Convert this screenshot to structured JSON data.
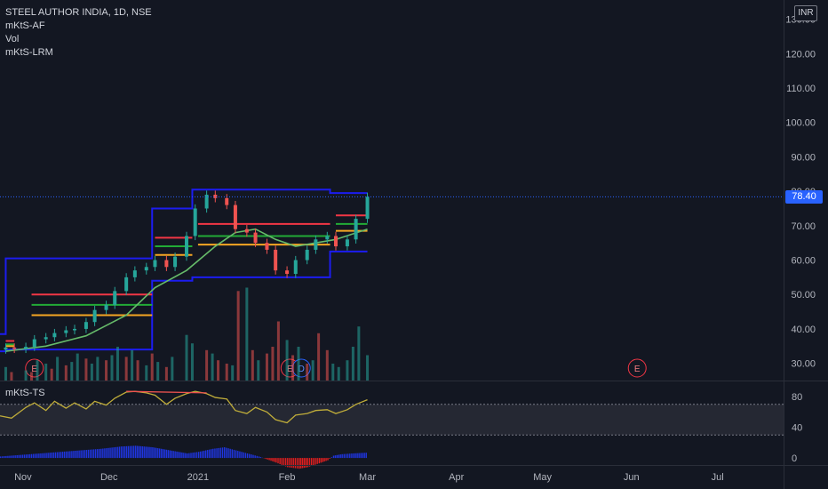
{
  "header": {
    "symbol_line": "STEEL AUTHOR INDIA, 1D, NSE",
    "indicators": [
      "mKtS-AF",
      "Vol",
      "mKtS-LRM"
    ],
    "currency": "INR"
  },
  "oscillator": {
    "label": "mKtS-TS"
  },
  "last_price": "78.40",
  "colors": {
    "background": "#131722",
    "up": "#26a69a",
    "down": "#ef5350",
    "channel": "#1c1cf0",
    "ma": "#66bb6a",
    "last_price": "#2962ff"
  },
  "events": [
    {
      "label": "E",
      "date": "2020-11-05"
    },
    {
      "label": "E",
      "date": "2021-02-02"
    },
    {
      "label": "D",
      "date": "2021-02-06"
    },
    {
      "label": "E",
      "date": "2021-06-03"
    }
  ],
  "chart_data": [
    {
      "type": "candlestick",
      "title": "STEEL AUTHOR INDIA, 1D, NSE",
      "x_axis": {
        "type": "date",
        "range": [
          "2020-10-24",
          "2021-07-24"
        ],
        "tick_labels": [
          {
            "date": "2020-11-01",
            "label": "Nov"
          },
          {
            "date": "2020-12-01",
            "label": "Dec"
          },
          {
            "date": "2021-01-01",
            "label": "2021"
          },
          {
            "date": "2021-02-01",
            "label": "Feb"
          },
          {
            "date": "2021-03-01",
            "label": "Mar"
          },
          {
            "date": "2021-04-01",
            "label": "Apr"
          },
          {
            "date": "2021-05-01",
            "label": "May"
          },
          {
            "date": "2021-06-01",
            "label": "Jun"
          },
          {
            "date": "2021-07-01",
            "label": "Jul"
          }
        ]
      },
      "y_axis": {
        "range": [
          25,
          133
        ],
        "ticks": [
          "30.00",
          "40.00",
          "50.00",
          "60.00",
          "70.00",
          "80.00",
          "90.00",
          "100.00",
          "110.00",
          "120.00",
          "130.00"
        ]
      },
      "grid": false,
      "close_series": [
        [
          "2020-10-26",
          34.6
        ],
        [
          "2020-10-29",
          34.2
        ],
        [
          "2020-11-02",
          34.8
        ],
        [
          "2020-11-05",
          37.0
        ],
        [
          "2020-11-09",
          37.6
        ],
        [
          "2020-11-12",
          38.8
        ],
        [
          "2020-11-16",
          39.6
        ],
        [
          "2020-11-19",
          40.0
        ],
        [
          "2020-11-23",
          42.0
        ],
        [
          "2020-11-26",
          45.5
        ],
        [
          "2020-11-30",
          47.0
        ],
        [
          "2020-12-03",
          51.0
        ],
        [
          "2020-12-07",
          55.0
        ],
        [
          "2020-12-10",
          57.0
        ],
        [
          "2020-12-14",
          58.0
        ],
        [
          "2020-12-17",
          60.0
        ],
        [
          "2020-12-21",
          58.0
        ],
        [
          "2020-12-24",
          61.0
        ],
        [
          "2020-12-28",
          67.0
        ],
        [
          "2020-12-31",
          75.0
        ],
        [
          "2021-01-04",
          79.0
        ],
        [
          "2021-01-07",
          78.0
        ],
        [
          "2021-01-11",
          76.0
        ],
        [
          "2021-01-14",
          69.0
        ],
        [
          "2021-01-18",
          68.0
        ],
        [
          "2021-01-21",
          65.0
        ],
        [
          "2021-01-25",
          63.0
        ],
        [
          "2021-01-28",
          57.0
        ],
        [
          "2021-02-01",
          56.0
        ],
        [
          "2021-02-04",
          60.0
        ],
        [
          "2021-02-08",
          63.0
        ],
        [
          "2021-02-11",
          66.0
        ],
        [
          "2021-02-15",
          67.0
        ],
        [
          "2021-02-18",
          64.0
        ],
        [
          "2021-02-22",
          66.0
        ],
        [
          "2021-02-25",
          72.0
        ],
        [
          "2021-03-01",
          78.4
        ]
      ],
      "moving_average": [
        [
          "2020-10-26",
          33.5
        ],
        [
          "2020-11-09",
          35.0
        ],
        [
          "2020-11-23",
          38.0
        ],
        [
          "2020-12-07",
          44.0
        ],
        [
          "2020-12-17",
          52.0
        ],
        [
          "2020-12-28",
          57.0
        ],
        [
          "2021-01-07",
          64.0
        ],
        [
          "2021-01-14",
          68.0
        ],
        [
          "2021-01-21",
          69.0
        ],
        [
          "2021-01-28",
          66.0
        ],
        [
          "2021-02-04",
          64.0
        ],
        [
          "2021-02-11",
          65.0
        ],
        [
          "2021-02-18",
          66.0
        ],
        [
          "2021-03-01",
          69.0
        ]
      ],
      "channel": [
        {
          "from": "2020-10-24",
          "to": "2020-10-26",
          "top": 38.5,
          "bottom": 33.5
        },
        {
          "from": "2020-10-26",
          "to": "2020-12-16",
          "top": 60.5,
          "bottom": 34.0
        },
        {
          "from": "2020-12-16",
          "to": "2020-12-30",
          "top": 75.0,
          "bottom": 54.0
        },
        {
          "from": "2020-12-30",
          "to": "2021-02-16",
          "top": 80.5,
          "bottom": 55.0
        },
        {
          "from": "2021-02-16",
          "to": "2021-03-01",
          "top": 79.5,
          "bottom": 62.5
        }
      ],
      "levels": [
        {
          "from": "2020-10-26",
          "to": "2020-10-29",
          "red": 36.5,
          "green": 35.5,
          "orange": 35.0
        },
        {
          "from": "2020-11-04",
          "to": "2020-12-16",
          "red": 50.0,
          "green": 47.0,
          "orange": 44.0
        },
        {
          "from": "2020-12-17",
          "to": "2020-12-30",
          "red": 66.5,
          "green": 64.0,
          "orange": 61.5
        },
        {
          "from": "2021-01-01",
          "to": "2021-02-16",
          "red": 70.5,
          "green": 67.0,
          "orange": 64.5
        },
        {
          "from": "2021-02-18",
          "to": "2021-03-01",
          "red": 73.0,
          "green": 70.5,
          "orange": 68.5
        }
      ],
      "last_price": 78.4
    },
    {
      "type": "bar",
      "title": "Vol",
      "note": "relative volume, unitless",
      "values": [
        [
          "2020-10-26",
          8,
          "up"
        ],
        [
          "2020-10-28",
          5,
          "down"
        ],
        [
          "2020-11-02",
          6,
          "up"
        ],
        [
          "2020-11-04",
          5,
          "down"
        ],
        [
          "2020-11-06",
          12,
          "up"
        ],
        [
          "2020-11-09",
          10,
          "up"
        ],
        [
          "2020-11-11",
          7,
          "down"
        ],
        [
          "2020-11-13",
          14,
          "up"
        ],
        [
          "2020-11-16",
          9,
          "down"
        ],
        [
          "2020-11-18",
          11,
          "up"
        ],
        [
          "2020-11-20",
          16,
          "up"
        ],
        [
          "2020-11-23",
          13,
          "down"
        ],
        [
          "2020-11-25",
          10,
          "up"
        ],
        [
          "2020-11-27",
          14,
          "up"
        ],
        [
          "2020-11-30",
          12,
          "down"
        ],
        [
          "2020-12-02",
          15,
          "up"
        ],
        [
          "2020-12-04",
          20,
          "up"
        ],
        [
          "2020-12-07",
          14,
          "down"
        ],
        [
          "2020-12-09",
          18,
          "up"
        ],
        [
          "2020-12-11",
          12,
          "down"
        ],
        [
          "2020-12-14",
          9,
          "up"
        ],
        [
          "2020-12-16",
          16,
          "down"
        ],
        [
          "2020-12-18",
          11,
          "up"
        ],
        [
          "2020-12-21",
          8,
          "down"
        ],
        [
          "2020-12-23",
          14,
          "up"
        ],
        [
          "2020-12-28",
          27,
          "up"
        ],
        [
          "2020-12-30",
          22,
          "up"
        ],
        [
          "2021-01-04",
          18,
          "down"
        ],
        [
          "2021-01-06",
          16,
          "up"
        ],
        [
          "2021-01-08",
          12,
          "down"
        ],
        [
          "2021-01-11",
          10,
          "down"
        ],
        [
          "2021-01-13",
          9,
          "up"
        ],
        [
          "2021-01-15",
          53,
          "down"
        ],
        [
          "2021-01-18",
          55,
          "up"
        ],
        [
          "2021-01-20",
          18,
          "down"
        ],
        [
          "2021-01-22",
          12,
          "up"
        ],
        [
          "2021-01-25",
          16,
          "down"
        ],
        [
          "2021-01-27",
          20,
          "down"
        ],
        [
          "2021-01-29",
          35,
          "down"
        ],
        [
          "2021-02-01",
          24,
          "up"
        ],
        [
          "2021-02-03",
          15,
          "down"
        ],
        [
          "2021-02-05",
          20,
          "up"
        ],
        [
          "2021-02-08",
          10,
          "down"
        ],
        [
          "2021-02-10",
          12,
          "up"
        ],
        [
          "2021-02-12",
          28,
          "down"
        ],
        [
          "2021-02-15",
          18,
          "down"
        ],
        [
          "2021-02-17",
          10,
          "up"
        ],
        [
          "2021-02-19",
          8,
          "up"
        ],
        [
          "2021-02-22",
          12,
          "up"
        ],
        [
          "2021-02-24",
          20,
          "up"
        ],
        [
          "2021-02-26",
          32,
          "up"
        ],
        [
          "2021-03-01",
          15,
          "up"
        ]
      ]
    },
    {
      "type": "line",
      "title": "mKtS-TS",
      "y_axis": {
        "range": [
          -8,
          93
        ],
        "ticks": [
          "0",
          "40",
          "80"
        ],
        "band": [
          30,
          70
        ]
      },
      "series": [
        {
          "name": "mKtS-TS",
          "color": "#c0ad3a",
          "points": [
            [
              "2020-10-24",
              55
            ],
            [
              "2020-10-28",
              52
            ],
            [
              "2020-11-02",
              66
            ],
            [
              "2020-11-05",
              72
            ],
            [
              "2020-11-09",
              62
            ],
            [
              "2020-11-12",
              74
            ],
            [
              "2020-11-16",
              65
            ],
            [
              "2020-11-19",
              72
            ],
            [
              "2020-11-23",
              64
            ],
            [
              "2020-11-26",
              74
            ],
            [
              "2020-11-30",
              69
            ],
            [
              "2020-12-03",
              78
            ],
            [
              "2020-12-07",
              86
            ],
            [
              "2020-12-10",
              87
            ],
            [
              "2020-12-14",
              85
            ],
            [
              "2020-12-17",
              82
            ],
            [
              "2020-12-21",
              70
            ],
            [
              "2020-12-24",
              78
            ],
            [
              "2020-12-28",
              84
            ],
            [
              "2020-12-31",
              87
            ],
            [
              "2021-01-04",
              84
            ],
            [
              "2021-01-07",
              79
            ],
            [
              "2021-01-11",
              77
            ],
            [
              "2021-01-14",
              62
            ],
            [
              "2021-01-18",
              58
            ],
            [
              "2021-01-21",
              66
            ],
            [
              "2021-01-25",
              60
            ],
            [
              "2021-01-28",
              50
            ],
            [
              "2021-02-01",
              46
            ],
            [
              "2021-02-04",
              56
            ],
            [
              "2021-02-08",
              58
            ],
            [
              "2021-02-11",
              62
            ],
            [
              "2021-02-15",
              63
            ],
            [
              "2021-02-18",
              58
            ],
            [
              "2021-02-22",
              63
            ],
            [
              "2021-02-25",
              70
            ],
            [
              "2021-03-01",
              76
            ]
          ]
        }
      ],
      "divergence_line": {
        "from": [
          "2020-12-07",
          87
        ],
        "to": [
          "2021-01-04",
          85
        ],
        "color": "#ef5350"
      },
      "histogram": [
        [
          "2020-10-24",
          2
        ],
        [
          "2020-10-31",
          4
        ],
        [
          "2020-11-07",
          6
        ],
        [
          "2020-11-14",
          8
        ],
        [
          "2020-11-21",
          10
        ],
        [
          "2020-11-28",
          12
        ],
        [
          "2020-12-05",
          15
        ],
        [
          "2020-12-10",
          16
        ],
        [
          "2020-12-16",
          14
        ],
        [
          "2020-12-22",
          10
        ],
        [
          "2020-12-28",
          6
        ],
        [
          "2021-01-01",
          8
        ],
        [
          "2021-01-06",
          12
        ],
        [
          "2021-01-10",
          14
        ],
        [
          "2021-01-14",
          10
        ],
        [
          "2021-01-18",
          6
        ],
        [
          "2021-01-22",
          2
        ],
        [
          "2021-01-25",
          -2
        ],
        [
          "2021-01-28",
          -6
        ],
        [
          "2021-02-01",
          -12
        ],
        [
          "2021-02-05",
          -14
        ],
        [
          "2021-02-08",
          -12
        ],
        [
          "2021-02-12",
          -7
        ],
        [
          "2021-02-15",
          -3
        ],
        [
          "2021-02-17",
          3
        ],
        [
          "2021-02-20",
          5
        ],
        [
          "2021-02-24",
          6
        ],
        [
          "2021-03-01",
          7
        ]
      ]
    }
  ]
}
